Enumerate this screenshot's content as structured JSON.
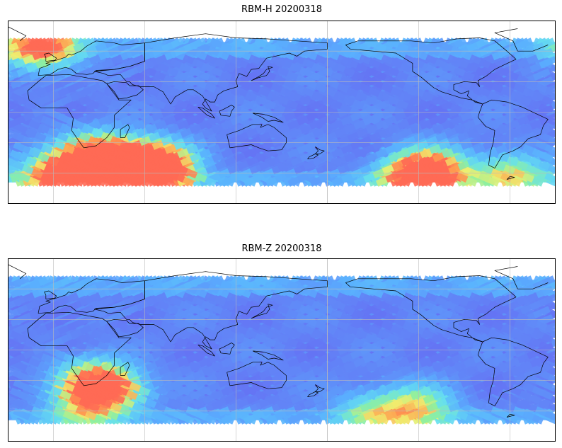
{
  "panels": [
    {
      "id": "h",
      "title": "RBM-H 20200318",
      "hot_zones": [
        {
          "lon": -120,
          "lat": -62,
          "intensity": 0.95
        },
        {
          "lon": -110,
          "lat": -55,
          "intensity": 0.7
        },
        {
          "lon": -60,
          "lat": -60,
          "intensity": 0.55
        },
        {
          "lon": 0,
          "lat": -62,
          "intensity": 0.45
        },
        {
          "lon": 25,
          "lat": -40,
          "intensity": 0.75
        },
        {
          "lon": 35,
          "lat": -52,
          "intensity": 1.0
        },
        {
          "lon": 50,
          "lat": -60,
          "intensity": 1.0
        },
        {
          "lon": 60,
          "lat": -48,
          "intensity": 0.9
        },
        {
          "lon": 70,
          "lat": -55,
          "intensity": 1.0
        },
        {
          "lon": 10,
          "lat": -60,
          "intensity": 0.8
        },
        {
          "lon": -10,
          "lat": 68,
          "intensity": 0.5
        },
        {
          "lon": -5,
          "lat": 62,
          "intensity": 0.45
        }
      ]
    },
    {
      "id": "z",
      "title": "RBM-Z 20200318",
      "hot_zones": [
        {
          "lon": -120,
          "lat": -55,
          "intensity": 0.6
        },
        {
          "lon": 25,
          "lat": -30,
          "intensity": 0.7
        },
        {
          "lon": 35,
          "lat": -38,
          "intensity": 0.75
        },
        {
          "lon": 20,
          "lat": -55,
          "intensity": 0.45
        },
        {
          "lon": -150,
          "lat": -60,
          "intensity": 0.4
        }
      ]
    }
  ],
  "colors": {
    "low": "#6a5cf0",
    "mid": "#5ab0ff",
    "cyan": "#66e0f0",
    "green": "#8ef0a0",
    "yellow": "#f0f070",
    "orange": "#ffa050",
    "red": "#ff6a55",
    "coast": "#000000",
    "grid": "#bbbbbb"
  },
  "map": {
    "projection": "plate-carree",
    "central_longitude": 150,
    "lat_extent": [
      -90,
      90
    ],
    "swath_lat_extent": [
      -69,
      69
    ],
    "gridlines_lon": [
      -180,
      -120,
      -60,
      0,
      60,
      120,
      180
    ],
    "gridlines_lat": [
      -60,
      -30,
      0,
      30,
      60
    ]
  }
}
